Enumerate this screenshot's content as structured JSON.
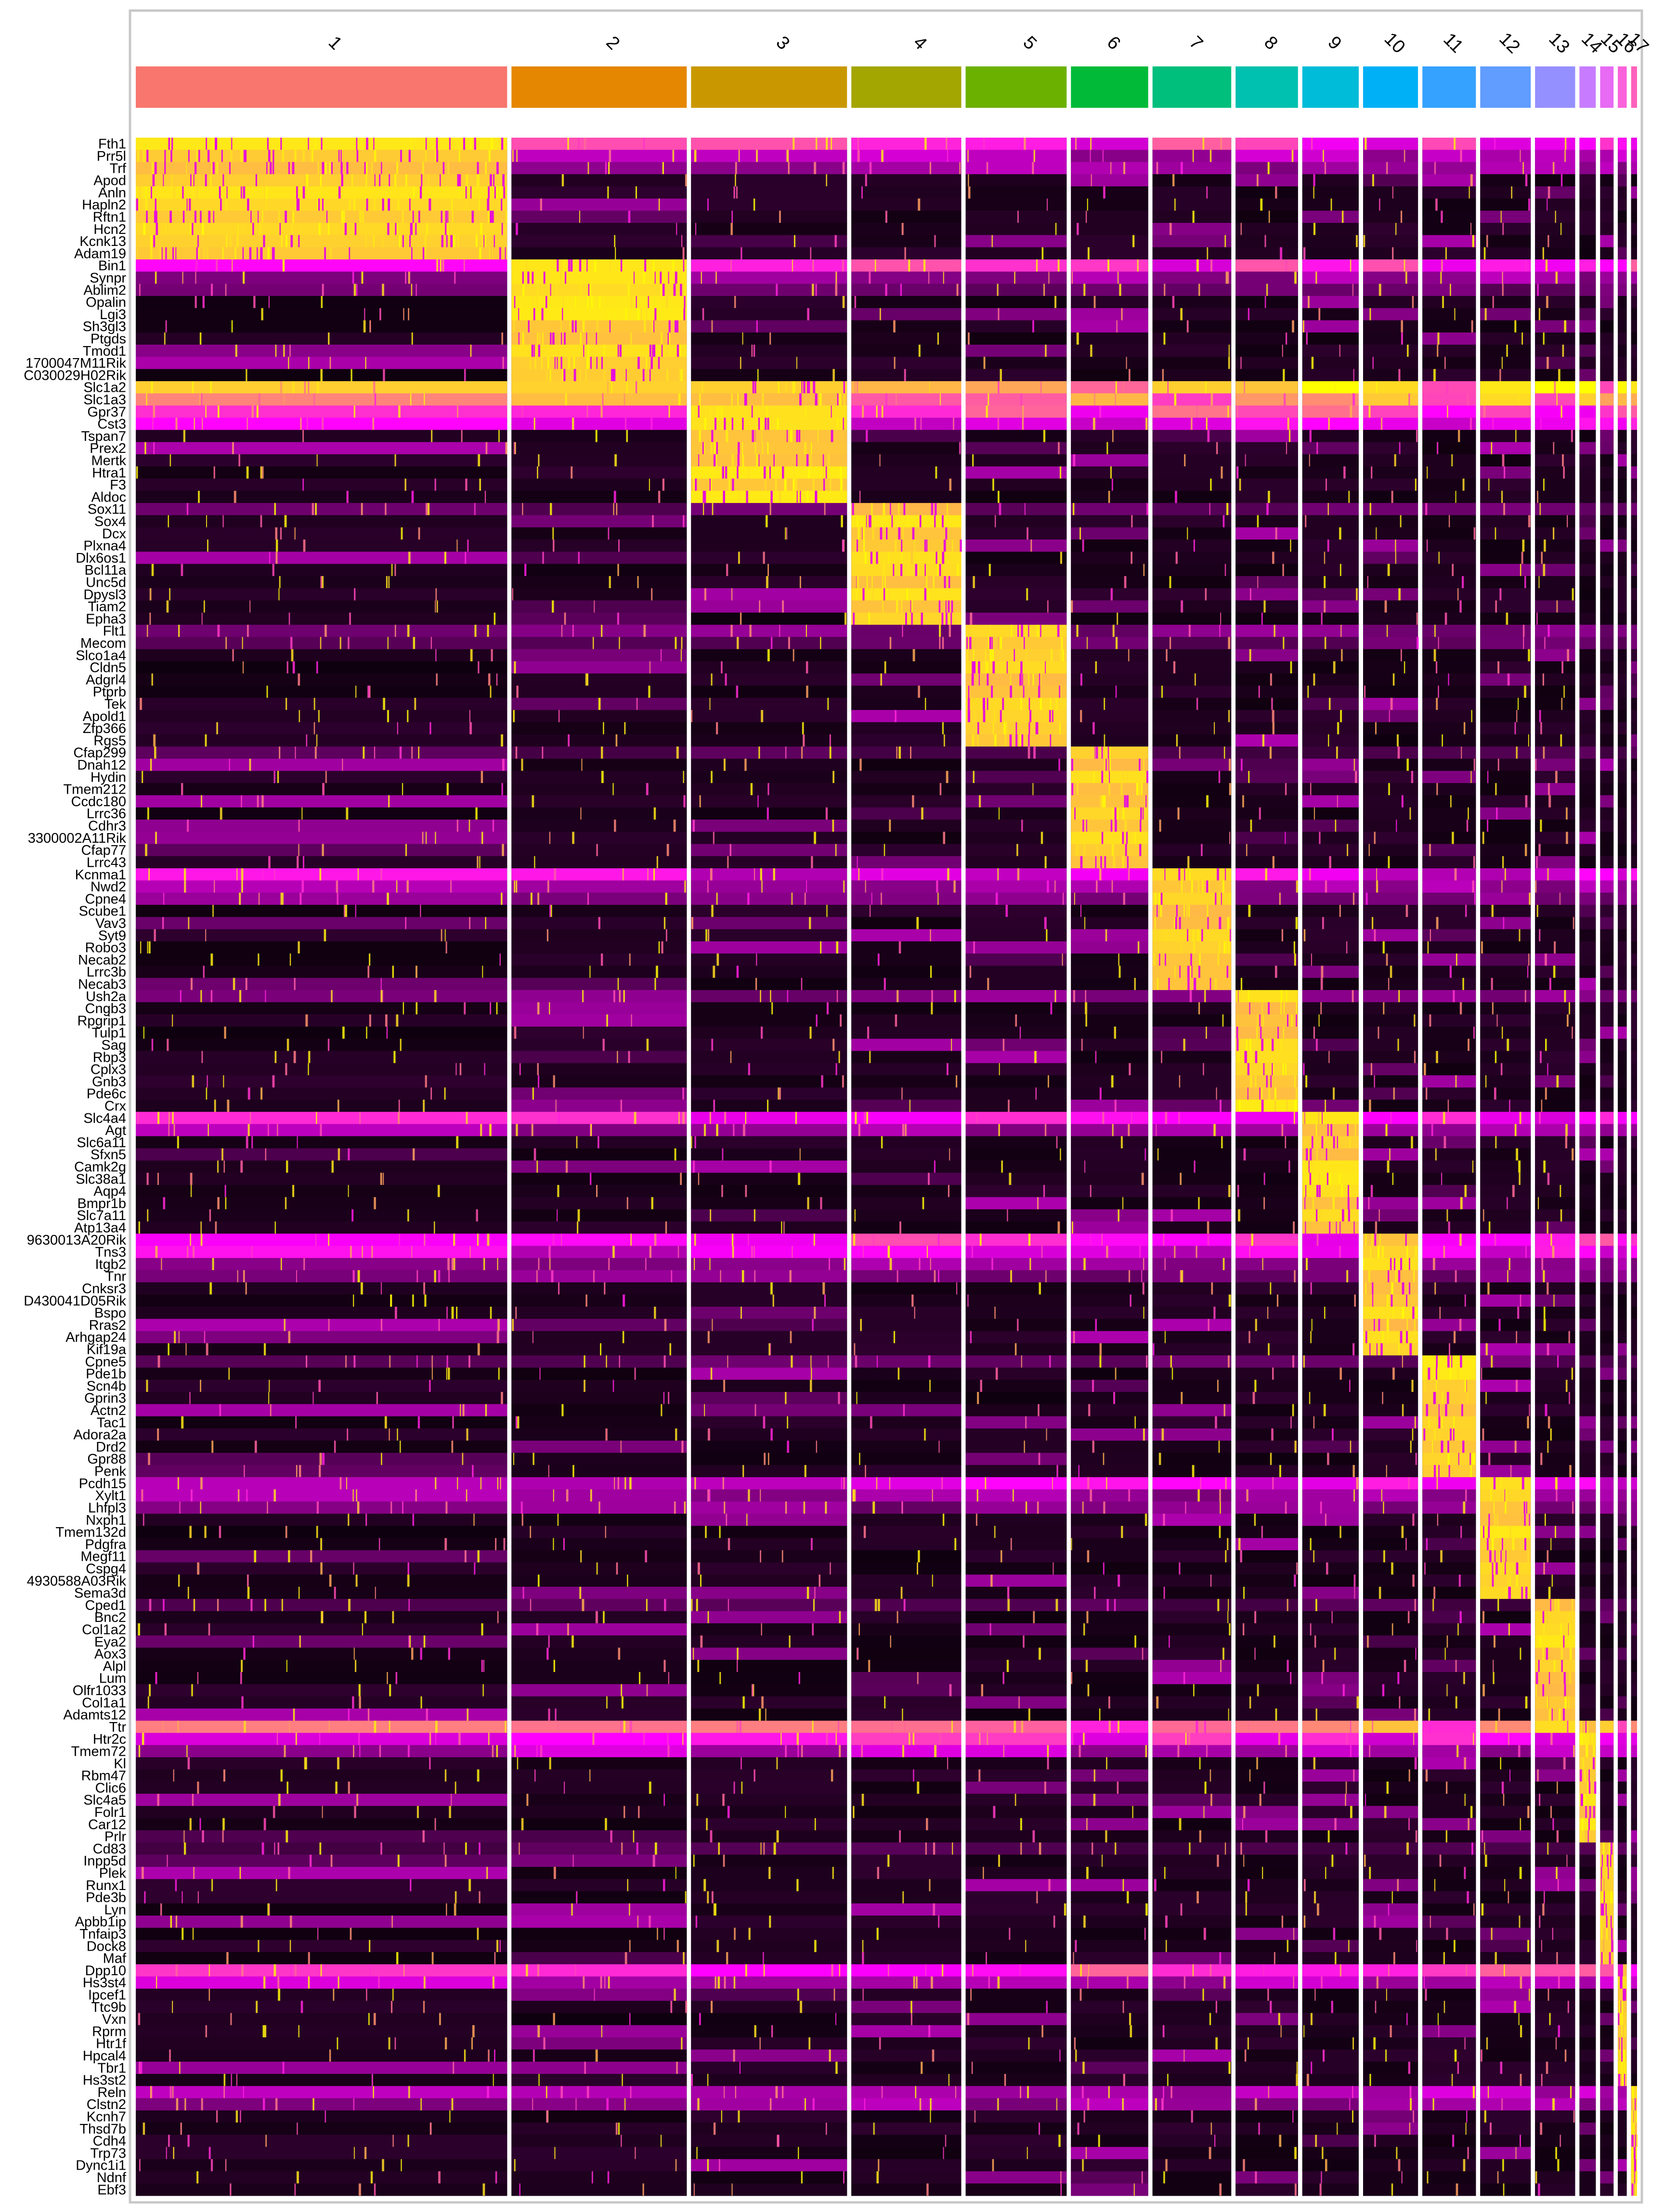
{
  "chart_data": {
    "type": "heatmap",
    "title": "",
    "xlabel": "",
    "ylabel": "",
    "legend": "none",
    "colors": {
      "low": "#000000",
      "mid": "#ff00ff",
      "high": "#ffff00",
      "divider": "#ffffff",
      "frame": "#c8c8c8"
    },
    "clusters": [
      {
        "label": "1",
        "color": "#f8766d",
        "cells": 2500
      },
      {
        "label": "2",
        "color": "#e58700",
        "cells": 1180
      },
      {
        "label": "3",
        "color": "#c99800",
        "cells": 1050
      },
      {
        "label": "4",
        "color": "#a3a500",
        "cells": 740
      },
      {
        "label": "5",
        "color": "#6bb100",
        "cells": 680
      },
      {
        "label": "6",
        "color": "#00ba38",
        "cells": 520
      },
      {
        "label": "7",
        "color": "#00bf7d",
        "cells": 530
      },
      {
        "label": "8",
        "color": "#00c0af",
        "cells": 420
      },
      {
        "label": "9",
        "color": "#00bcd8",
        "cells": 380
      },
      {
        "label": "10",
        "color": "#00b0f6",
        "cells": 370
      },
      {
        "label": "11",
        "color": "#35a2ff",
        "cells": 360
      },
      {
        "label": "12",
        "color": "#619cff",
        "cells": 340
      },
      {
        "label": "13",
        "color": "#9590ff",
        "cells": 270
      },
      {
        "label": "14",
        "color": "#c77cff",
        "cells": 110
      },
      {
        "label": "15",
        "color": "#e76bf3",
        "cells": 90
      },
      {
        "label": "16",
        "color": "#fa62db",
        "cells": 60
      },
      {
        "label": "17",
        "color": "#ff62bc",
        "cells": 40
      }
    ],
    "gene_groups": [
      {
        "cluster": "1",
        "genes": [
          "Fth1",
          "Prr5l",
          "Trf",
          "Apod",
          "Anln",
          "Hapln2",
          "Rftn1",
          "Hcn2",
          "Kcnk13",
          "Adam19"
        ],
        "row_tints": [
          0.55,
          0.35,
          0.3
        ]
      },
      {
        "cluster": "2",
        "genes": [
          "Bin1",
          "Synpr",
          "Ablim2",
          "Opalin",
          "Lgi3",
          "Sh3gl3",
          "Ptgds",
          "Tmod1",
          "1700047M11Rik",
          "C030029H02Rik"
        ],
        "row_tints": [
          0.55,
          0.3,
          0.2
        ]
      },
      {
        "cluster": "3",
        "genes": [
          "Slc1a2",
          "Slc1a3",
          "Gpr37",
          "Cst3",
          "Tspan7",
          "Prex2",
          "Mertk",
          "Htra1",
          "F3",
          "Aldoc"
        ],
        "row_tints": [
          0.85,
          0.75,
          0.6,
          0.45
        ]
      },
      {
        "cluster": "4",
        "genes": [
          "Sox11",
          "Sox4",
          "Dcx",
          "Plxna4",
          "Dlx6os1",
          "Bcl11a",
          "Unc5d",
          "Dpysl3",
          "Tiam2",
          "Epha3"
        ],
        "row_tints": [
          0.2
        ]
      },
      {
        "cluster": "5",
        "genes": [
          "Flt1",
          "Mecom",
          "Slco1a4",
          "Cldn5",
          "Adgrl4",
          "Ptprb",
          "Tek",
          "Apold1",
          "Zfp366",
          "Rgs5"
        ],
        "row_tints": [
          0.25,
          0.2
        ]
      },
      {
        "cluster": "6",
        "genes": [
          "Cfap299",
          "Dnah12",
          "Hydin",
          "Tmem212",
          "Ccdc180",
          "Lrrc36",
          "Cdhr3",
          "3300002A11Rik",
          "Cfap77",
          "Lrrc43"
        ],
        "row_tints": [
          0.15
        ]
      },
      {
        "cluster": "7",
        "genes": [
          "Kcnma1",
          "Nwd2",
          "Cpne4",
          "Scube1",
          "Vav3",
          "Syt9",
          "Robo3",
          "Necab2",
          "Lrrc3b",
          "Necab3"
        ],
        "row_tints": [
          0.45,
          0.3,
          0.25
        ]
      },
      {
        "cluster": "8",
        "genes": [
          "Ush2a",
          "Cngb3",
          "Rpgrip1",
          "Tulp1",
          "Sag",
          "Rbp3",
          "Cplx3",
          "Gnb3",
          "Pde6c",
          "Crx"
        ],
        "row_tints": [
          0.25
        ]
      },
      {
        "cluster": "9",
        "genes": [
          "Slc4a4",
          "Agt",
          "Slc6a11",
          "Sfxn5",
          "Camk2g",
          "Slc38a1",
          "Aqp4",
          "Bmpr1b",
          "Slc7a11",
          "Atp13a4"
        ],
        "row_tints": [
          0.5,
          0.3
        ]
      },
      {
        "cluster": "10",
        "genes": [
          "9630013A20Rik",
          "Tns3",
          "Itgb2",
          "Tnr",
          "Cnksr3",
          "D430041D05Rik",
          "Bspo",
          "Rras2",
          "Arhgap24",
          "Kif19a"
        ],
        "row_tints": [
          0.55,
          0.45,
          0.3,
          0.25
        ]
      },
      {
        "cluster": "11",
        "genes": [
          "Cpne5",
          "Pde1b",
          "Scn4b",
          "Gprin3",
          "Actn2",
          "Tac1",
          "Adora2a",
          "Drd2",
          "Gpr88",
          "Penk"
        ],
        "row_tints": [
          0.2
        ]
      },
      {
        "cluster": "12",
        "genes": [
          "Pcdh15",
          "Xylt1",
          "Lhfpl3",
          "Nxph1",
          "Tmem132d",
          "Pdgfra",
          "Megf11",
          "Cspg4",
          "4930588A03Rik",
          "Sema3d"
        ],
        "row_tints": [
          0.45,
          0.3,
          0.25
        ]
      },
      {
        "cluster": "13",
        "genes": [
          "Cped1",
          "Bnc2",
          "Col1a2",
          "Eya2",
          "Aox3",
          "Alpl",
          "Lum",
          "Olfr1033",
          "Col1a1",
          "Adamts12"
        ],
        "row_tints": [
          0.15
        ]
      },
      {
        "cluster": "14",
        "genes": [
          "Ttr",
          "Htr2c",
          "Tmem72",
          "Kl",
          "Rbm47",
          "Clic6",
          "Slc4a5",
          "Folr1",
          "Car12",
          "Prlr"
        ],
        "row_tints": [
          0.75,
          0.5,
          0.35
        ]
      },
      {
        "cluster": "15",
        "genes": [
          "Cd83",
          "Inpp5d",
          "Plek",
          "Runx1",
          "Pde3b",
          "Lyn",
          "Apbb1ip",
          "Tnfaip3",
          "Dock8",
          "Maf"
        ],
        "row_tints": [
          0.15
        ]
      },
      {
        "cluster": "16",
        "genes": [
          "Dpp10",
          "Hs3st4",
          "Ipcef1",
          "Ttc9b",
          "Vxn",
          "Rprm",
          "Htr1f",
          "Hpcal4",
          "Tbr1",
          "Hs3st2"
        ],
        "row_tints": [
          0.6,
          0.35
        ]
      },
      {
        "cluster": "17",
        "genes": [
          "Reln",
          "Clstn2",
          "Kcnh7",
          "Thsd7b",
          "Cdh4",
          "Trp73",
          "Dync1i1",
          "Ndnf",
          "Ebf3"
        ],
        "row_tints": [
          0.35,
          0.3
        ]
      }
    ]
  }
}
